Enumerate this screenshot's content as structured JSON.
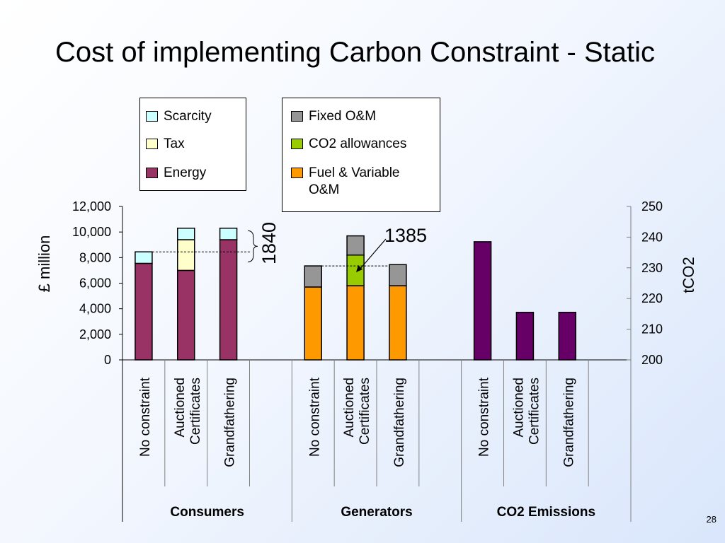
{
  "slide": {
    "title": "Cost of implementing Carbon Constraint - Static",
    "page_number": "28"
  },
  "legend_left": [
    {
      "label": "Scarcity",
      "color": "#ccffff"
    },
    {
      "label": "Tax",
      "color": "#ffffcc"
    },
    {
      "label": "Energy",
      "color": "#993366"
    }
  ],
  "legend_right": [
    {
      "label": "Fixed O&M",
      "color": "#969696"
    },
    {
      "label": "CO2 allowances",
      "color": "#99cc00"
    },
    {
      "label": "Fuel & Variable O&M",
      "color": "#ff9900"
    }
  ],
  "annotations": {
    "a1840": "1840",
    "a1385": "1385"
  },
  "chart_data": {
    "type": "bar",
    "stacked": true,
    "y_left": {
      "label": "£ million",
      "range": [
        0,
        12000
      ],
      "ticks": [
        "0",
        "2,000",
        "4,000",
        "6,000",
        "8,000",
        "10,000",
        "12,000"
      ]
    },
    "y_right": {
      "label": "tCO2",
      "range": [
        200,
        250
      ],
      "ticks": [
        "200",
        "210",
        "220",
        "230",
        "240",
        "250"
      ]
    },
    "groups": [
      {
        "name": "Consumers",
        "categories": [
          "No constraint",
          "Auctioned Certificates",
          "Grandfathering"
        ],
        "series": [
          {
            "name": "Energy",
            "color": "#993366",
            "values": [
              7550,
              7000,
              9400
            ]
          },
          {
            "name": "Tax",
            "color": "#ffffcc",
            "values": [
              0,
              2400,
              0
            ]
          },
          {
            "name": "Scarcity",
            "color": "#ccffff",
            "values": [
              900,
              900,
              900
            ]
          }
        ]
      },
      {
        "name": "Generators",
        "categories": [
          "No constraint",
          "Auctioned Certificates",
          "Grandfathering"
        ],
        "series": [
          {
            "name": "Fuel & Variable O&M",
            "color": "#ff9900",
            "values": [
              5700,
              5800,
              5800
            ]
          },
          {
            "name": "CO2 allowances",
            "color": "#99cc00",
            "values": [
              0,
              2400,
              0
            ]
          },
          {
            "name": "Fixed O&M",
            "color": "#969696",
            "values": [
              1650,
              1500,
              1650
            ]
          }
        ]
      },
      {
        "name": "CO2 Emissions",
        "categories": [
          "No constraint",
          "Auctioned Certificates",
          "Grandfathering"
        ],
        "axis": "right",
        "series": [
          {
            "name": "tCO2",
            "color": "#660066",
            "values": [
              238.5,
              215.5,
              215.5
            ]
          }
        ]
      }
    ]
  }
}
